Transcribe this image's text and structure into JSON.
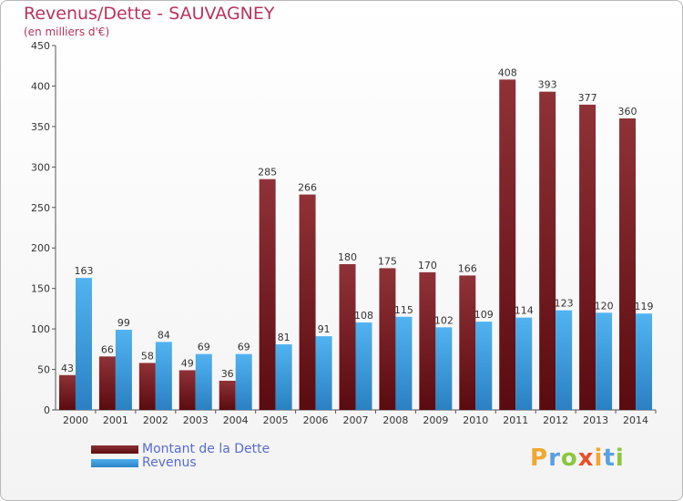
{
  "title": "Revenus/Dette - SAUVAGNEY",
  "subtitle": "(en milliers d'€)",
  "legend": {
    "dette_label": "Montant de la Dette",
    "revenus_label": "Revenus"
  },
  "logo": {
    "letters": [
      "P",
      "r",
      "o",
      "x",
      "i",
      "t",
      "i"
    ],
    "colors": [
      "#f0a830",
      "#5aa0e0",
      "#8cc63e",
      "#e8502a",
      "#f0a830",
      "#5aa0e0",
      "#8cc63e"
    ]
  },
  "colors": {
    "dette": "#7a1f24",
    "revenus": "#3d9ee0",
    "title": "#b8335a",
    "legend_text": "#5a6bd0"
  },
  "chart_data": {
    "type": "bar",
    "title": "Revenus/Dette - SAUVAGNEY",
    "ylabel": "(en milliers d'€)",
    "xlabel": "",
    "ylim": [
      0,
      450
    ],
    "yticks": [
      0,
      50,
      100,
      150,
      200,
      250,
      300,
      350,
      400,
      450
    ],
    "grid": false,
    "categories": [
      "2000",
      "2001",
      "2002",
      "2003",
      "2004",
      "2005",
      "2006",
      "2007",
      "2008",
      "2009",
      "2010",
      "2011",
      "2012",
      "2013",
      "2014"
    ],
    "series": [
      {
        "name": "Montant de la Dette",
        "values": [
          43,
          66,
          58,
          49,
          36,
          285,
          266,
          180,
          175,
          170,
          166,
          408,
          393,
          377,
          360
        ]
      },
      {
        "name": "Revenus",
        "values": [
          163,
          99,
          84,
          69,
          69,
          81,
          91,
          108,
          115,
          102,
          109,
          114,
          123,
          120,
          119
        ]
      }
    ],
    "legend_position": "bottom-left"
  }
}
